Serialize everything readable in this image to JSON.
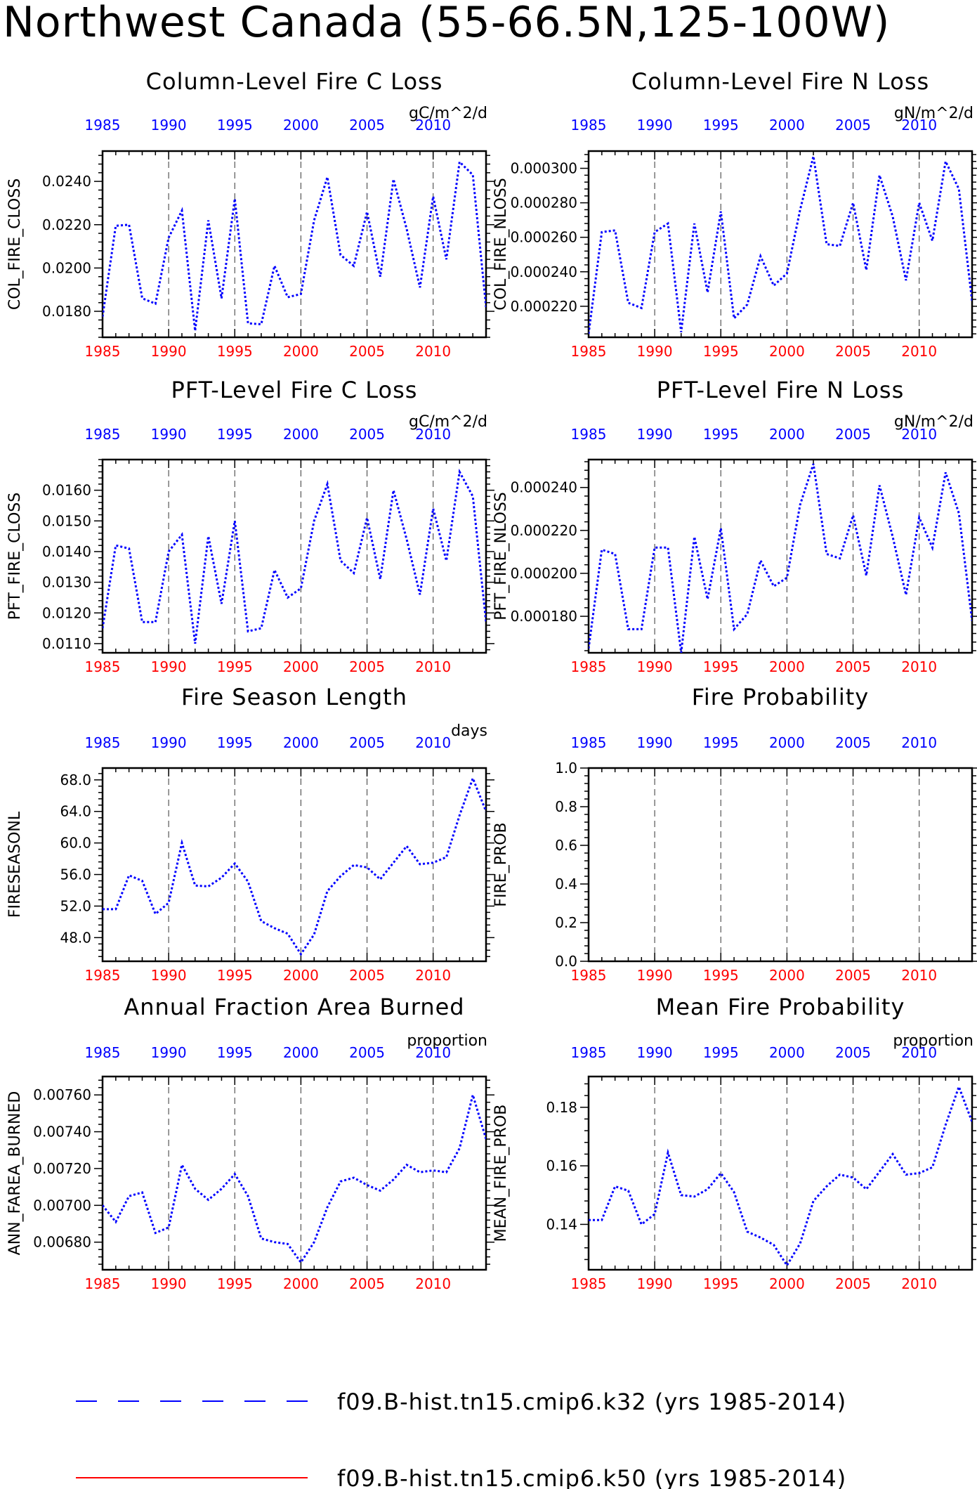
{
  "title": "Northwest Canada (55-66.5N,125-100W)",
  "colors": {
    "series": "#0000ff",
    "bottom_ticks": "#ff0000",
    "top_ticks": "#0000ff",
    "axis": "#000000",
    "legend_second": "#ff0000"
  },
  "x_tick_labels": [
    "1985",
    "1990",
    "1995",
    "2000",
    "2005",
    "2010"
  ],
  "chart_data": [
    {
      "type": "line",
      "title": "Column-Level Fire C Loss",
      "units": "gC/m^2/d",
      "ylabel": "COL_FIRE_CLOSS",
      "xlim": [
        1985,
        2014
      ],
      "ylim": [
        0.0168,
        0.0254
      ],
      "yticks": [
        0.018,
        0.02,
        0.022,
        0.024
      ],
      "ytick_labels": [
        "0.0180",
        "0.0200",
        "0.0220",
        "0.0240"
      ],
      "x": [
        1985,
        1986,
        1987,
        1988,
        1989,
        1990,
        1991,
        1992,
        1993,
        1994,
        1995,
        1996,
        1997,
        1998,
        1999,
        2000,
        2001,
        2002,
        2003,
        2004,
        2005,
        2006,
        2007,
        2008,
        2009,
        2010,
        2011,
        2012,
        2013,
        2014
      ],
      "values": [
        0.01775,
        0.02195,
        0.022,
        0.0186,
        0.01835,
        0.0214,
        0.02265,
        0.0171,
        0.0222,
        0.0186,
        0.0232,
        0.01745,
        0.0174,
        0.0201,
        0.01865,
        0.0188,
        0.0222,
        0.0242,
        0.0206,
        0.0201,
        0.0226,
        0.0196,
        0.0241,
        0.0218,
        0.0191,
        0.0233,
        0.0204,
        0.0249,
        0.0243,
        0.0182
      ]
    },
    {
      "type": "line",
      "title": "Column-Level Fire N Loss",
      "units": "gN/m^2/d",
      "ylabel": "COL_FIRE_NLOSS",
      "xlim": [
        1985,
        2014
      ],
      "ylim": [
        0.000202,
        0.00031
      ],
      "yticks": [
        0.00022,
        0.00024,
        0.00026,
        0.00028,
        0.0003
      ],
      "ytick_labels": [
        "0.000220",
        "0.000240",
        "0.000260",
        "0.000280",
        "0.000300"
      ],
      "x": [
        1985,
        1986,
        1987,
        1988,
        1989,
        1990,
        1991,
        1992,
        1993,
        1994,
        1995,
        1996,
        1997,
        1998,
        1999,
        2000,
        2001,
        2002,
        2003,
        2004,
        2005,
        2006,
        2007,
        2008,
        2009,
        2010,
        2011,
        2012,
        2013,
        2014
      ],
      "values": [
        0.000204,
        0.000263,
        0.000264,
        0.000222,
        0.000219,
        0.000263,
        0.000268,
        0.000205,
        0.000268,
        0.000228,
        0.000275,
        0.000213,
        0.000221,
        0.000249,
        0.000232,
        0.000239,
        0.000276,
        0.000307,
        0.000256,
        0.000255,
        0.00028,
        0.000241,
        0.000296,
        0.000272,
        0.000235,
        0.00028,
        0.000258,
        0.000304,
        0.000288,
        0.000223
      ]
    },
    {
      "type": "line",
      "title": "PFT-Level Fire C Loss",
      "units": "gC/m^2/d",
      "ylabel": "PFT_FIRE_CLOSS",
      "xlim": [
        1985,
        2014
      ],
      "ylim": [
        0.0107,
        0.017
      ],
      "yticks": [
        0.011,
        0.012,
        0.013,
        0.014,
        0.015,
        0.016
      ],
      "ytick_labels": [
        "0.0110",
        "0.0120",
        "0.0130",
        "0.0140",
        "0.0150",
        "0.0160"
      ],
      "x": [
        1985,
        1986,
        1987,
        1988,
        1989,
        1990,
        1991,
        1992,
        1993,
        1994,
        1995,
        1996,
        1997,
        1998,
        1999,
        2000,
        2001,
        2002,
        2003,
        2004,
        2005,
        2006,
        2007,
        2008,
        2009,
        2010,
        2011,
        2012,
        2013,
        2014
      ],
      "values": [
        0.0115,
        0.0142,
        0.0141,
        0.0117,
        0.0117,
        0.014,
        0.01455,
        0.011,
        0.0145,
        0.0123,
        0.015,
        0.0114,
        0.0115,
        0.0134,
        0.0125,
        0.0128,
        0.015,
        0.0162,
        0.0137,
        0.0133,
        0.0151,
        0.0131,
        0.016,
        0.0144,
        0.0126,
        0.0154,
        0.0137,
        0.0166,
        0.0158,
        0.0117
      ]
    },
    {
      "type": "line",
      "title": "PFT-Level Fire N Loss",
      "units": "gN/m^2/d",
      "ylabel": "PFT_FIRE_NLOSS",
      "xlim": [
        1985,
        2014
      ],
      "ylim": [
        0.000163,
        0.000253
      ],
      "yticks": [
        0.00018,
        0.0002,
        0.00022,
        0.00024
      ],
      "ytick_labels": [
        "0.000180",
        "0.000200",
        "0.000220",
        "0.000240"
      ],
      "x": [
        1985,
        1986,
        1987,
        1988,
        1989,
        1990,
        1991,
        1992,
        1993,
        1994,
        1995,
        1996,
        1997,
        1998,
        1999,
        2000,
        2001,
        2002,
        2003,
        2004,
        2005,
        2006,
        2007,
        2008,
        2009,
        2010,
        2011,
        2012,
        2013,
        2014
      ],
      "values": [
        0.000165,
        0.000211,
        0.000209,
        0.000174,
        0.000174,
        0.000212,
        0.000212,
        0.000163,
        0.000217,
        0.000188,
        0.000221,
        0.000174,
        0.000181,
        0.000206,
        0.000194,
        0.000198,
        0.000232,
        0.000251,
        0.000209,
        0.000207,
        0.000227,
        0.000199,
        0.000241,
        0.000217,
        0.00019,
        0.000226,
        0.000212,
        0.000247,
        0.000228,
        0.000178
      ]
    },
    {
      "type": "line",
      "title": "Fire Season Length",
      "units": "days",
      "ylabel": "FIRESEASONL",
      "xlim": [
        1985,
        2014
      ],
      "ylim": [
        45.0,
        69.5
      ],
      "yticks": [
        48,
        52,
        56,
        60,
        64,
        68
      ],
      "ytick_labels": [
        "48.0",
        "52.0",
        "56.0",
        "60.0",
        "64.0",
        "68.0"
      ],
      "x": [
        1985,
        1986,
        1987,
        1988,
        1989,
        1990,
        1991,
        1992,
        1993,
        1994,
        1995,
        1996,
        1997,
        1998,
        1999,
        2000,
        2001,
        2002,
        2003,
        2004,
        2005,
        2006,
        2007,
        2008,
        2009,
        2010,
        2011,
        2012,
        2013,
        2014
      ],
      "values": [
        51.6,
        51.6,
        55.9,
        55.2,
        51.0,
        52.4,
        60.0,
        54.6,
        54.5,
        55.6,
        57.4,
        55.1,
        50.1,
        49.2,
        48.5,
        45.9,
        48.4,
        53.9,
        55.8,
        57.2,
        56.9,
        55.4,
        57.5,
        59.6,
        57.3,
        57.5,
        58.2,
        63.5,
        68.2,
        64.0
      ]
    },
    {
      "type": "line",
      "title": "Fire Probability",
      "units": "",
      "ylabel": "FIRE_PROB",
      "xlim": [
        1985,
        2014
      ],
      "ylim": [
        0.0,
        1.0
      ],
      "yticks": [
        0.0,
        0.2,
        0.4,
        0.6,
        0.8,
        1.0
      ],
      "ytick_labels": [
        "0.0",
        "0.2",
        "0.4",
        "0.6",
        "0.8",
        "1.0"
      ],
      "x": [],
      "values": []
    },
    {
      "type": "line",
      "title": "Annual Fraction Area Burned",
      "units": "proportion",
      "ylabel": "ANN_FAREA_BURNED",
      "xlim": [
        1985,
        2014
      ],
      "ylim": [
        0.00665,
        0.0077
      ],
      "yticks": [
        0.0068,
        0.007,
        0.0072,
        0.0074,
        0.0076
      ],
      "ytick_labels": [
        "0.00680",
        "0.00700",
        "0.00720",
        "0.00740",
        "0.00760"
      ],
      "x": [
        1985,
        1986,
        1987,
        1988,
        1989,
        1990,
        1991,
        1992,
        1993,
        1994,
        1995,
        1996,
        1997,
        1998,
        1999,
        2000,
        2001,
        2002,
        2003,
        2004,
        2005,
        2006,
        2007,
        2008,
        2009,
        2010,
        2011,
        2012,
        2013,
        2014
      ],
      "values": [
        0.007,
        0.00691,
        0.00705,
        0.00707,
        0.00685,
        0.00688,
        0.00722,
        0.00709,
        0.00703,
        0.00709,
        0.00717,
        0.00705,
        0.00682,
        0.0068,
        0.00679,
        0.00669,
        0.0068,
        0.00699,
        0.00713,
        0.00715,
        0.00711,
        0.00708,
        0.00714,
        0.00722,
        0.00718,
        0.00719,
        0.00718,
        0.00731,
        0.0076,
        0.00736
      ]
    },
    {
      "type": "line",
      "title": "Mean Fire Probability",
      "units": "proportion",
      "ylabel": "MEAN_FIRE_PROB",
      "xlim": [
        1985,
        2014
      ],
      "ylim": [
        0.1245,
        0.1905
      ],
      "yticks": [
        0.14,
        0.16,
        0.18
      ],
      "ytick_labels": [
        "0.14",
        "0.16",
        "0.18"
      ],
      "x": [
        1985,
        1986,
        1987,
        1988,
        1989,
        1990,
        1991,
        1992,
        1993,
        1994,
        1995,
        1996,
        1997,
        1998,
        1999,
        2000,
        2001,
        2002,
        2003,
        2004,
        2005,
        2006,
        2007,
        2008,
        2009,
        2010,
        2011,
        2012,
        2013,
        2014
      ],
      "values": [
        0.1415,
        0.1415,
        0.153,
        0.1515,
        0.14,
        0.1435,
        0.1645,
        0.15,
        0.1495,
        0.152,
        0.1575,
        0.151,
        0.1375,
        0.1355,
        0.133,
        0.126,
        0.1335,
        0.148,
        0.153,
        0.157,
        0.156,
        0.152,
        0.158,
        0.164,
        0.157,
        0.1575,
        0.1595,
        0.174,
        0.187,
        0.175
      ]
    }
  ],
  "legend": [
    {
      "label": "f09.B-hist.tn15.cmip6.k32 (yrs 1985-2014)",
      "color": "#0000ff",
      "style": "dashed"
    },
    {
      "label": "f09.B-hist.tn15.cmip6.k50 (yrs 1985-2014)",
      "color": "#ff0000",
      "style": "solid"
    }
  ]
}
